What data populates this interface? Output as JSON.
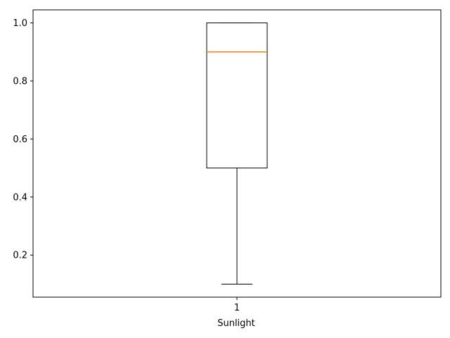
{
  "chart_data": {
    "type": "box",
    "title": "",
    "xlabel": "Sunlight",
    "ylabel": "",
    "categories": [
      "1"
    ],
    "ylim": [
      0.055,
      1.045
    ],
    "yticks": [
      0.2,
      0.4,
      0.6,
      0.8,
      1.0
    ],
    "ytick_labels": [
      "0.2",
      "0.4",
      "0.6",
      "0.8",
      "1.0"
    ],
    "xtick_labels": [
      "1"
    ],
    "boxes": [
      {
        "category": "1",
        "whisker_low": 0.1,
        "q1": 0.5,
        "median": 0.9,
        "q3": 1.0,
        "whisker_high": 1.0
      }
    ],
    "grid": false,
    "colors": {
      "box": "#000000",
      "median": "#ff7f0e",
      "axes": "#000000"
    }
  }
}
